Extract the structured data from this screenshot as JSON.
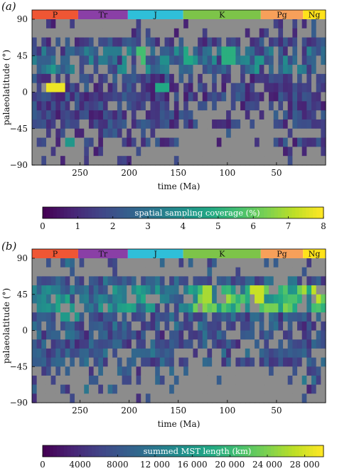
{
  "chart_data": [
    {
      "panel_label": "(a)",
      "type": "heatmap",
      "x": {
        "label": "time (Ma)",
        "ticks": [
          250,
          200,
          150,
          100,
          50
        ],
        "range": [
          298.9,
          0
        ],
        "reversed": true
      },
      "y": {
        "label": "palaeolatitude (°)",
        "ticks": [
          -90,
          -45,
          0,
          45,
          90
        ],
        "range": [
          -90,
          90
        ]
      },
      "periods": [
        {
          "label": "P",
          "start": 298.9,
          "end": 251.9,
          "color": "#ef5634"
        },
        {
          "label": "Tr",
          "start": 251.9,
          "end": 201.3,
          "color": "#8a3fa6"
        },
        {
          "label": "J",
          "start": 201.3,
          "end": 145.0,
          "color": "#2fbfd9"
        },
        {
          "label": "K",
          "start": 145.0,
          "end": 66.0,
          "color": "#7dc449"
        },
        {
          "label": "Pg",
          "start": 66.0,
          "end": 23.0,
          "color": "#f7a05a"
        },
        {
          "label": "Ng",
          "start": 23.0,
          "end": 0,
          "color": "#ffe21a"
        }
      ],
      "colorbar": {
        "title": "spatial sampling coverage (%)",
        "ticks": [
          "0",
          "1",
          "2",
          "3",
          "4",
          "5",
          "6",
          "7",
          "8"
        ],
        "min": 0,
        "max": 8
      },
      "no_data_color": "#8c8c8c",
      "hotspots": [
        {
          "time": 275,
          "lat": 5,
          "value": 7.8
        },
        {
          "time": 188,
          "lat": 45,
          "value": 5.6
        },
        {
          "time": 140,
          "lat": 45,
          "value": 4.8
        },
        {
          "time": 100,
          "lat": 45,
          "value": 5.0
        },
        {
          "time": 165,
          "lat": 5,
          "value": 4.8
        },
        {
          "time": 262,
          "lat": -70,
          "value": 4.2
        }
      ]
    },
    {
      "panel_label": "(b)",
      "type": "heatmap",
      "x": {
        "label": "time (Ma)",
        "ticks": [
          250,
          200,
          150,
          100,
          50
        ],
        "range": [
          298.9,
          0
        ],
        "reversed": true
      },
      "y": {
        "label": "palaeolatitude (°)",
        "ticks": [
          -90,
          -45,
          0,
          45,
          90
        ],
        "range": [
          -90,
          90
        ]
      },
      "periods": [
        {
          "label": "P",
          "start": 298.9,
          "end": 251.9,
          "color": "#ef5634"
        },
        {
          "label": "Tr",
          "start": 251.9,
          "end": 201.3,
          "color": "#8a3fa6"
        },
        {
          "label": "J",
          "start": 201.3,
          "end": 145.0,
          "color": "#2fbfd9"
        },
        {
          "label": "K",
          "start": 145.0,
          "end": 66.0,
          "color": "#7dc449"
        },
        {
          "label": "Pg",
          "start": 66.0,
          "end": 23.0,
          "color": "#f7a05a"
        },
        {
          "label": "Ng",
          "start": 23.0,
          "end": 0,
          "color": "#ffe21a"
        }
      ],
      "colorbar": {
        "title": "summed MST length (km)",
        "ticks": [
          "0",
          "4000",
          "8000",
          "12 000",
          "16 000",
          "20 000",
          "24 000",
          "28 000"
        ],
        "min": 0,
        "max": 30000
      },
      "no_data_color": "#8c8c8c",
      "hotspots": [
        {
          "time": 120,
          "lat": 45,
          "value": 26000
        },
        {
          "time": 70,
          "lat": 45,
          "value": 27500
        },
        {
          "time": 10,
          "lat": 45,
          "value": 27000
        },
        {
          "time": 200,
          "lat": 30,
          "value": 17000
        },
        {
          "time": 260,
          "lat": 20,
          "value": 16000
        }
      ]
    }
  ]
}
